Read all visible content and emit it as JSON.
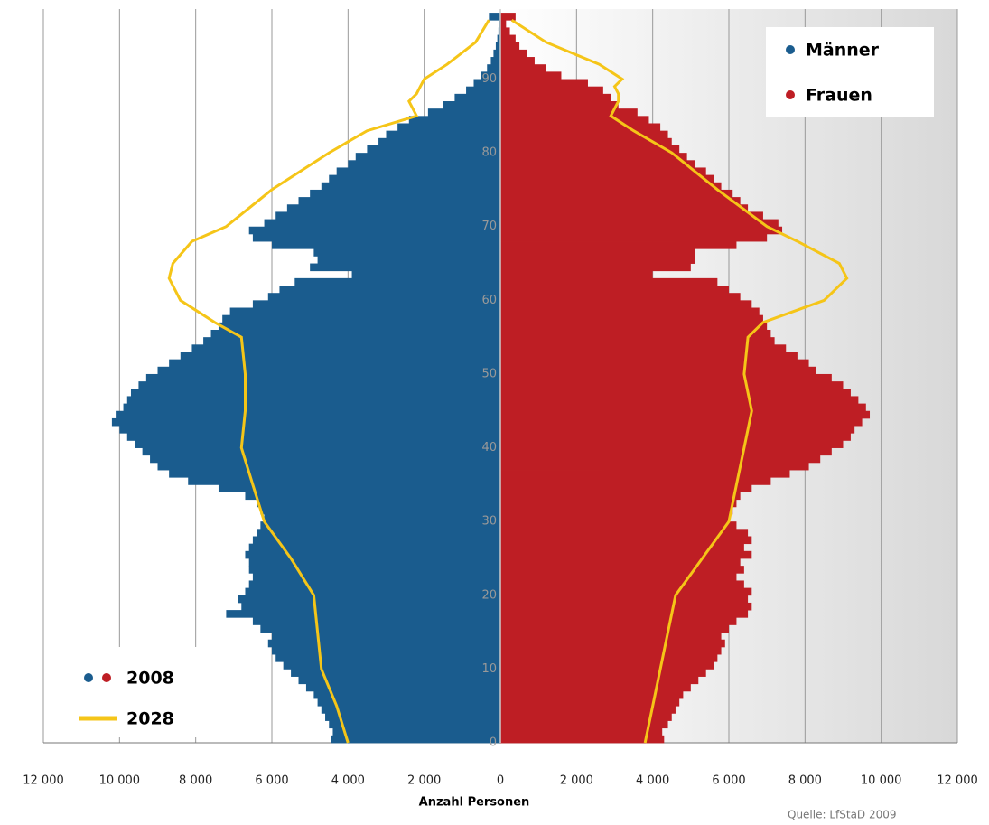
{
  "chart_data": {
    "type": "bar",
    "orientation": "pyramid",
    "categories": [
      0,
      1,
      2,
      3,
      4,
      5,
      6,
      7,
      8,
      9,
      10,
      11,
      12,
      13,
      14,
      15,
      16,
      17,
      18,
      19,
      20,
      21,
      22,
      23,
      24,
      25,
      26,
      27,
      28,
      29,
      30,
      31,
      32,
      33,
      34,
      35,
      36,
      37,
      38,
      39,
      40,
      41,
      42,
      43,
      44,
      45,
      46,
      47,
      48,
      49,
      50,
      51,
      52,
      53,
      54,
      55,
      56,
      57,
      58,
      59,
      60,
      61,
      62,
      63,
      64,
      65,
      66,
      67,
      68,
      69,
      70,
      71,
      72,
      73,
      74,
      75,
      76,
      77,
      78,
      79,
      80,
      81,
      82,
      83,
      84,
      85,
      86,
      87,
      88,
      89,
      90,
      91,
      92,
      93,
      94,
      95,
      96,
      97,
      98
    ],
    "series": [
      {
        "name": "Männer",
        "color": "#1a5c8e",
        "side": "left",
        "values": [
          4450,
          4400,
          4500,
          4600,
          4700,
          4800,
          4900,
          5100,
          5300,
          5500,
          5700,
          5900,
          6000,
          6100,
          6000,
          6300,
          6500,
          7200,
          6800,
          6900,
          6700,
          6600,
          6500,
          6600,
          6600,
          6700,
          6600,
          6500,
          6400,
          6300,
          6200,
          6300,
          6400,
          6700,
          7400,
          8200,
          8700,
          9000,
          9200,
          9400,
          9600,
          9800,
          10000,
          10200,
          10100,
          9900,
          9800,
          9700,
          9500,
          9300,
          9000,
          8700,
          8400,
          8100,
          7800,
          7600,
          7400,
          7300,
          7100,
          6500,
          6100,
          5800,
          5400,
          3900,
          5000,
          4800,
          4900,
          6000,
          6500,
          6600,
          6200,
          5900,
          5600,
          5300,
          5000,
          4700,
          4500,
          4300,
          4000,
          3800,
          3500,
          3200,
          3000,
          2700,
          2400,
          1900,
          1500,
          1200,
          900,
          700,
          500,
          350,
          250,
          180,
          120,
          80,
          50,
          30,
          300
        ]
      },
      {
        "name": "Frauen",
        "color": "#be1e24",
        "side": "right",
        "values": [
          4300,
          4250,
          4400,
          4500,
          4600,
          4700,
          4800,
          5000,
          5200,
          5400,
          5600,
          5700,
          5800,
          5900,
          5800,
          6000,
          6200,
          6500,
          6600,
          6500,
          6600,
          6400,
          6200,
          6400,
          6300,
          6600,
          6400,
          6600,
          6500,
          6200,
          6000,
          6100,
          6200,
          6300,
          6600,
          7100,
          7600,
          8100,
          8400,
          8700,
          9000,
          9200,
          9300,
          9500,
          9700,
          9600,
          9400,
          9200,
          9000,
          8700,
          8300,
          8100,
          7800,
          7500,
          7200,
          7100,
          7000,
          6900,
          6800,
          6600,
          6300,
          6000,
          5700,
          4000,
          5000,
          5100,
          5100,
          6200,
          7000,
          7400,
          7300,
          6900,
          6500,
          6300,
          6100,
          5800,
          5600,
          5400,
          5100,
          4900,
          4700,
          4500,
          4400,
          4200,
          3900,
          3600,
          3100,
          2900,
          2700,
          2300,
          1600,
          1200,
          900,
          700,
          500,
          400,
          250,
          150,
          400
        ]
      }
    ],
    "projection": {
      "name": "2028",
      "color": "#f5c518",
      "x": [
        0,
        5,
        10,
        15,
        20,
        25,
        30,
        35,
        40,
        45,
        50,
        55,
        57,
        60,
        63,
        65,
        68,
        70,
        75,
        80,
        83,
        85,
        87,
        88,
        89,
        90,
        92,
        95,
        98
      ],
      "left": [
        4000,
        4300,
        4700,
        4800,
        4900,
        5500,
        6200,
        6500,
        6800,
        6700,
        6700,
        6800,
        7500,
        8400,
        8700,
        8600,
        8100,
        7200,
        6000,
        4500,
        3500,
        2200,
        2400,
        2200,
        2100,
        2000,
        1400,
        650,
        300
      ],
      "right": [
        3800,
        4000,
        4200,
        4400,
        4600,
        5300,
        6000,
        6200,
        6400,
        6600,
        6400,
        6500,
        6900,
        8500,
        9100,
        8900,
        7800,
        7000,
        5700,
        4500,
        3500,
        2900,
        3100,
        3100,
        3000,
        3200,
        2600,
        1200,
        300
      ]
    },
    "legend_2008": "2008",
    "ylim": [
      0,
      99.5
    ],
    "yticks": [
      0,
      10,
      20,
      30,
      40,
      50,
      60,
      70,
      80,
      90
    ],
    "xlim": [
      -12000,
      12000
    ],
    "xticks": [
      {
        "value": -12000,
        "label": "12 000"
      },
      {
        "value": -10000,
        "label": "10 000"
      },
      {
        "value": -8000,
        "label": "8 000"
      },
      {
        "value": -6000,
        "label": "6 000"
      },
      {
        "value": -4000,
        "label": "4 000"
      },
      {
        "value": -2000,
        "label": "2 000"
      },
      0,
      {
        "value": 2000,
        "label": "2 000"
      },
      {
        "value": 4000,
        "label": "4 000"
      },
      {
        "value": 6000,
        "label": "6 000"
      },
      {
        "value": 8000,
        "label": "8 000"
      },
      {
        "value": 10000,
        "label": "10 000"
      },
      {
        "value": 12000,
        "label": "12 000"
      }
    ],
    "xlabel": "Anzahl Personen",
    "source": "Quelle: LfStaD 2009",
    "grid": true
  }
}
